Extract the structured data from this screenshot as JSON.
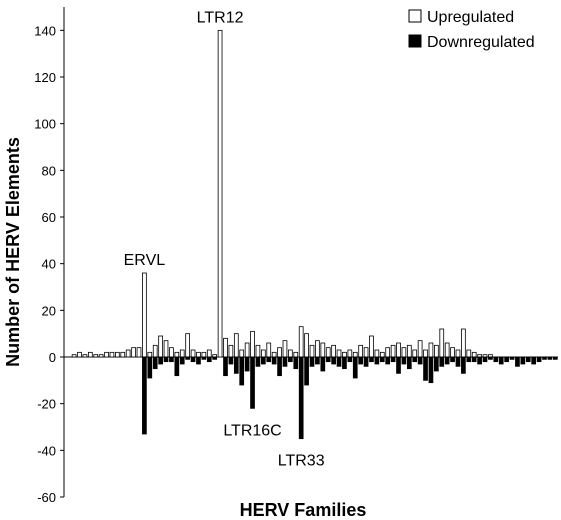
{
  "chart_data": {
    "type": "bar",
    "xlabel": "HERV Families",
    "ylabel": "Number of HERV Elements",
    "ylim": [
      -60,
      150
    ],
    "yticks": [
      -60,
      -40,
      -20,
      0,
      20,
      40,
      60,
      80,
      100,
      120,
      140
    ],
    "grid": false,
    "legend_position": "top-right",
    "series": [
      {
        "name": "Upregulated",
        "color": "#ffffff",
        "values": [
          0,
          1,
          2,
          1,
          2,
          1,
          1,
          2,
          2,
          2,
          2,
          3,
          4,
          4,
          36,
          2,
          5,
          9,
          7,
          4,
          2,
          3,
          10,
          3,
          2,
          2,
          3,
          1,
          140,
          8,
          5,
          10,
          3,
          6,
          11,
          5,
          3,
          6,
          2,
          4,
          7,
          3,
          2,
          13,
          10,
          5,
          7,
          6,
          4,
          5,
          3,
          2,
          3,
          2,
          5,
          4,
          9,
          3,
          2,
          4,
          5,
          6,
          4,
          5,
          3,
          7,
          3,
          6,
          5,
          12,
          6,
          4,
          3,
          12,
          3,
          2,
          1,
          1,
          1,
          0,
          0,
          0,
          0,
          0,
          0,
          0,
          0,
          0,
          0,
          0,
          0
        ]
      },
      {
        "name": "Downregulated",
        "color": "#000000",
        "values": [
          0,
          0,
          0,
          0,
          0,
          0,
          0,
          0,
          0,
          0,
          0,
          0,
          0,
          0,
          -33,
          -9,
          -5,
          -3,
          -2,
          -2,
          -8,
          -3,
          -1,
          -2,
          -3,
          -1,
          -2,
          -1,
          0,
          -8,
          -3,
          -7,
          -12,
          -6,
          -22,
          -4,
          -3,
          -2,
          -3,
          -8,
          -4,
          -2,
          -5,
          -35,
          -12,
          -4,
          -3,
          -6,
          -2,
          -3,
          -4,
          -5,
          -2,
          -9,
          -3,
          -4,
          -2,
          -3,
          -2,
          -3,
          -2,
          -7,
          -3,
          -5,
          -2,
          -3,
          -10,
          -11,
          -6,
          -4,
          -3,
          -2,
          -4,
          -7,
          -2,
          -2,
          -3,
          -2,
          -1,
          -2,
          -3,
          -2,
          -1,
          -4,
          -3,
          -2,
          -3,
          -2,
          -1,
          -1,
          -1
        ]
      }
    ],
    "annotations": [
      {
        "text": "ERVL",
        "index": 14,
        "series": 0
      },
      {
        "text": "LTR12",
        "index": 28,
        "series": 0
      },
      {
        "text": "LTR16C",
        "index": 34,
        "series": 1
      },
      {
        "text": "LTR33",
        "index": 43,
        "series": 1
      }
    ]
  }
}
